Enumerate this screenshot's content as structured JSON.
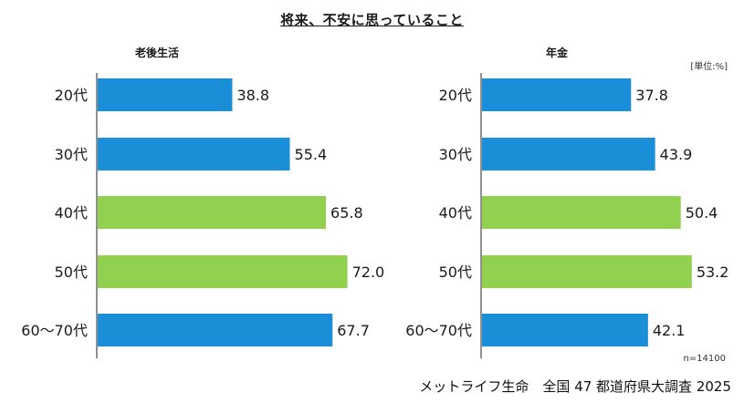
{
  "title": "将来、不安に思っていること",
  "unit_note": "[単位:%]",
  "sample_note": "n=14100",
  "source": "メットライフ生命　全国 47 都道府県大調査 2025",
  "colors": {
    "young": "#1a8fd8",
    "older": "#92d050"
  },
  "chart_data": [
    {
      "type": "bar",
      "orientation": "horizontal",
      "title": "老後生活",
      "categories": [
        "20代",
        "30代",
        "40代",
        "50代",
        "60～70代"
      ],
      "values": [
        38.8,
        55.4,
        65.8,
        72.0,
        67.7
      ],
      "value_labels": [
        "38.8",
        "55.4",
        "65.8",
        "72.0",
        "67.7"
      ],
      "bar_colors": [
        "#1a8fd8",
        "#1a8fd8",
        "#92d050",
        "#92d050",
        "#1a8fd8"
      ],
      "xlim": [
        0,
        100
      ]
    },
    {
      "type": "bar",
      "orientation": "horizontal",
      "title": "年金",
      "categories": [
        "20代",
        "30代",
        "40代",
        "50代",
        "60～70代"
      ],
      "values": [
        37.8,
        43.9,
        50.4,
        53.2,
        42.1
      ],
      "value_labels": [
        "37.8",
        "43.9",
        "50.4",
        "53.2",
        "42.1"
      ],
      "bar_colors": [
        "#1a8fd8",
        "#1a8fd8",
        "#92d050",
        "#92d050",
        "#1a8fd8"
      ],
      "xlim": [
        0,
        100
      ]
    }
  ]
}
